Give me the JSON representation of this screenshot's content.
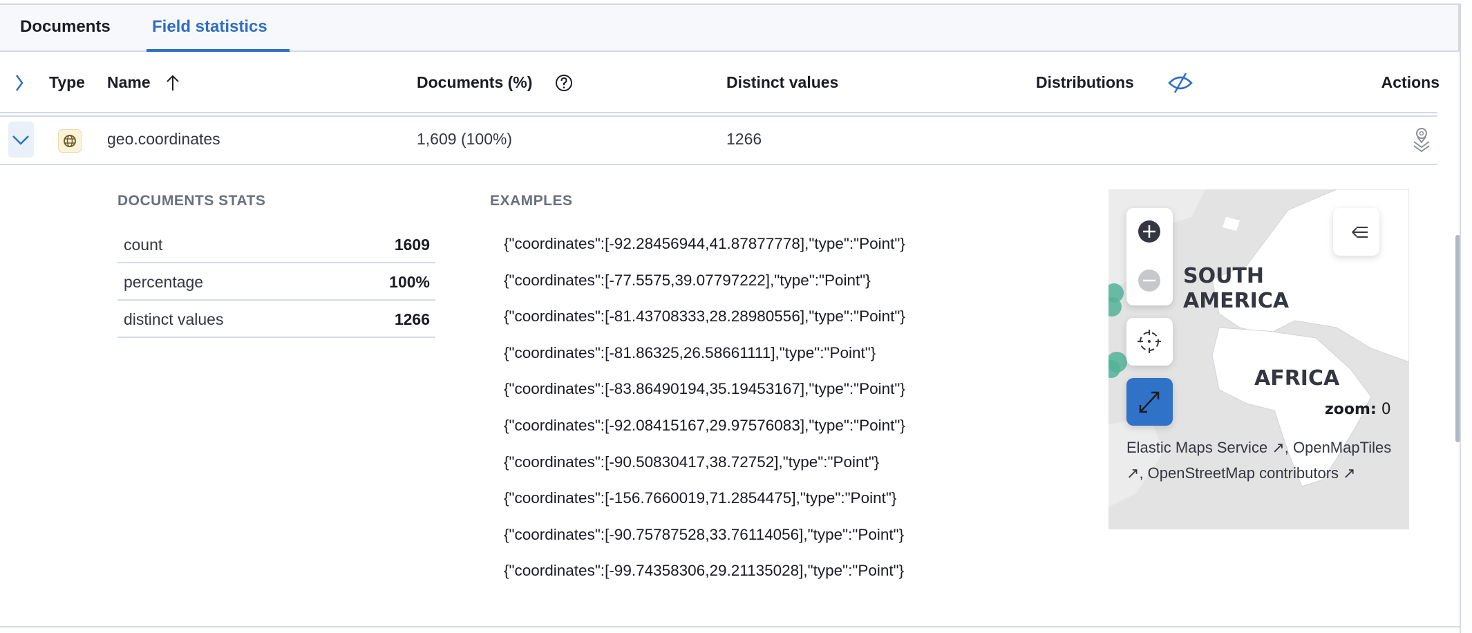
{
  "tabs": [
    {
      "label": "Documents"
    },
    {
      "label": "Field statistics",
      "active": true
    }
  ],
  "table": {
    "headers": {
      "type": "Type",
      "name": "Name",
      "documents": "Documents (%)",
      "distinct": "Distinct values",
      "distributions": "Distributions",
      "actions": "Actions"
    },
    "row": {
      "type_icon": "globe-icon",
      "name": "geo.coordinates",
      "documents": "1,609 (100%)",
      "distinct": "1266"
    }
  },
  "details": {
    "stats_title": "DOCUMENTS STATS",
    "stats": [
      {
        "label": "count",
        "value": "1609"
      },
      {
        "label": "percentage",
        "value": "100%"
      },
      {
        "label": "distinct values",
        "value": "1266"
      }
    ],
    "examples_title": "EXAMPLES",
    "examples": [
      "{\"coordinates\":[-92.28456944,41.87877778],\"type\":\"Point\"}",
      "{\"coordinates\":[-77.5575,39.07797222],\"type\":\"Point\"}",
      "{\"coordinates\":[-81.43708333,28.28980556],\"type\":\"Point\"}",
      "{\"coordinates\":[-81.86325,26.58661111],\"type\":\"Point\"}",
      "{\"coordinates\":[-83.86490194,35.19453167],\"type\":\"Point\"}",
      "{\"coordinates\":[-92.08415167,29.97576083],\"type\":\"Point\"}",
      "{\"coordinates\":[-90.50830417,38.72752],\"type\":\"Point\"}",
      "{\"coordinates\":[-156.7660019,71.2854475],\"type\":\"Point\"}",
      "{\"coordinates\":[-90.75787528,33.76114056],\"type\":\"Point\"}",
      "{\"coordinates\":[-99.74358306,29.21135028],\"type\":\"Point\"}"
    ],
    "map": {
      "label_africa": "AFRICA",
      "label_south_america": "SOUTH AMERICA",
      "zoom_label": "zoom:",
      "zoom_value": "0",
      "attribution": [
        "Elastic Maps Service",
        ", ",
        "OpenMapTiles",
        ", OpenStreetMap contributors"
      ],
      "point_color": "#54b399",
      "accent": "#3172c9"
    }
  }
}
